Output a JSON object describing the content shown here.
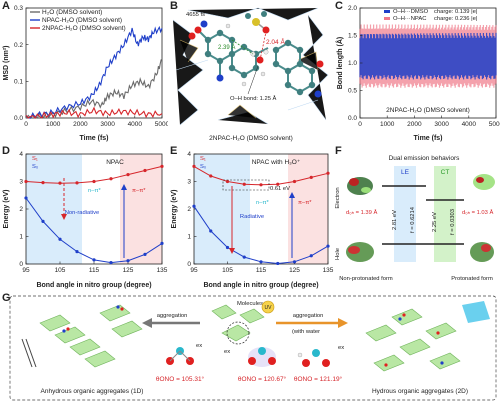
{
  "panel_labels": {
    "a": "A",
    "b": "B",
    "c": "C",
    "d": "D",
    "e": "E",
    "f": "F",
    "g": "G"
  },
  "colors": {
    "gray": "#6b6b6b",
    "blue": "#1f3fc9",
    "red": "#d6262b",
    "pink": "#f07a8a",
    "shade_blue": "#d9ecfb",
    "shade_red": "#fbe1e1",
    "green": "#9fd98a",
    "cyan": "#29b8cc"
  },
  "chart_data": [
    {
      "id": "A",
      "type": "line",
      "xlabel": "Time (fs)",
      "ylabel": "MSD (nm²)",
      "xlim": [
        0,
        5000
      ],
      "ylim": [
        0,
        0.3
      ],
      "xticks": [
        "0",
        "1000",
        "2000",
        "3000",
        "4000",
        "5000"
      ],
      "yticks": [
        "0.0",
        "0.1",
        "0.2",
        "0.3"
      ],
      "series": [
        {
          "name": "H₂O (DMSO solvent)",
          "color": "#6b6b6b",
          "x": [
            0,
            500,
            1000,
            1500,
            2000,
            2400,
            2800,
            3000,
            3300,
            3600,
            3900,
            4200,
            4500,
            4800,
            5000
          ],
          "y": [
            0,
            0.005,
            0.01,
            0.02,
            0.03,
            0.045,
            0.035,
            0.06,
            0.07,
            0.06,
            0.09,
            0.1,
            0.085,
            0.12,
            0.16
          ]
        },
        {
          "name": "NPAC-H₂O (DMSO solvent)",
          "color": "#1f3fc9",
          "x": [
            0,
            500,
            1000,
            1500,
            2000,
            2400,
            2700,
            3000,
            3300,
            3600,
            3900,
            4100,
            4300,
            4500,
            4700,
            5000
          ],
          "y": [
            0,
            0.01,
            0.015,
            0.03,
            0.04,
            0.06,
            0.09,
            0.14,
            0.17,
            0.2,
            0.24,
            0.2,
            0.22,
            0.215,
            0.235,
            0.245
          ]
        },
        {
          "name": "2NPAC-H₂O (DMSO solvent)",
          "color": "#d6262b",
          "x": [
            0,
            500,
            1000,
            1500,
            2000,
            2500,
            3000,
            3500,
            4000,
            4500,
            5000
          ],
          "y": [
            0,
            0.005,
            0.01,
            0.015,
            0.01,
            0.02,
            0.012,
            0.018,
            0.015,
            0.01,
            0.012
          ]
        }
      ]
    },
    {
      "id": "C",
      "type": "line",
      "xlabel": "Time (fs)",
      "ylabel": "Bond length (Å)",
      "xlim": [
        0,
        5000
      ],
      "ylim": [
        0,
        2.0
      ],
      "xticks": [
        "0",
        "1000",
        "2000",
        "3000",
        "4000",
        "5000"
      ],
      "yticks": [
        "0.0",
        "0.5",
        "1.0",
        "1.5",
        "2.0"
      ],
      "annotation": "2NPAC-H₂O (DMSO solvent)",
      "series": [
        {
          "name": "O–H···DMSO",
          "color": "#1f3fc9",
          "charge": "charge: 0.139 |e|",
          "band": [
            0.7,
            1.55
          ]
        },
        {
          "name": "O–H···NPAC",
          "color": "#f07a8a",
          "charge": "charge: 0.236 |e|",
          "band": [
            0.55,
            1.7
          ]
        }
      ]
    },
    {
      "id": "D",
      "type": "line",
      "xlabel": "Bond angle in nitro group (degree)",
      "ylabel": "Energy (eV)",
      "xlim": [
        95,
        135
      ],
      "ylim": [
        0,
        4
      ],
      "xticks": [
        "95",
        "105",
        "115",
        "125",
        "135"
      ],
      "yticks": [
        "0",
        "1",
        "2",
        "3",
        "4"
      ],
      "title": "NPAC",
      "series": [
        {
          "name": "S₁",
          "color": "#d6262b",
          "x": [
            95,
            100,
            105,
            110,
            115,
            120,
            125,
            130,
            135
          ],
          "y": [
            3.0,
            2.96,
            2.94,
            2.95,
            3.0,
            3.1,
            3.25,
            3.4,
            3.55
          ]
        },
        {
          "name": "S₀",
          "color": "#1f3fc9",
          "x": [
            95,
            100,
            105,
            110,
            115,
            120,
            125,
            130,
            135
          ],
          "y": [
            2.4,
            1.55,
            0.9,
            0.45,
            0.15,
            0.05,
            0.12,
            0.35,
            0.75
          ]
        }
      ],
      "labels": {
        "left": "n–π*",
        "right": "π–π*",
        "arrow": "Non-radiative"
      }
    },
    {
      "id": "E",
      "type": "line",
      "xlabel": "Bond angle in nitro group (degree)",
      "ylabel": "Energy (eV)",
      "xlim": [
        95,
        135
      ],
      "ylim": [
        0,
        4
      ],
      "xticks": [
        "95",
        "105",
        "115",
        "125",
        "135"
      ],
      "yticks": [
        "0",
        "1",
        "2",
        "3",
        "4"
      ],
      "title": "NPAC with H₃O⁺",
      "series": [
        {
          "name": "S₁",
          "color": "#d6262b",
          "x": [
            95,
            100,
            105,
            110,
            115,
            120,
            125,
            130,
            135
          ],
          "y": [
            3.55,
            3.2,
            3.0,
            2.9,
            2.88,
            2.9,
            3.0,
            3.15,
            3.3
          ]
        },
        {
          "name": "S₀",
          "color": "#1f3fc9",
          "x": [
            95,
            100,
            105,
            110,
            115,
            120,
            125,
            130,
            135
          ],
          "y": [
            2.1,
            1.2,
            0.6,
            0.25,
            0.08,
            0.02,
            0.08,
            0.3,
            0.65
          ]
        }
      ],
      "labels": {
        "left": "n–π*",
        "right": "π–π*",
        "arrow": "Radiative",
        "gap": "0.61 eV"
      }
    }
  ],
  "panel_b": {
    "time": "4655 fs",
    "dist1": "2.39 Å",
    "dist2": "2.04 Å",
    "bond": "O–H bond: 1.25 Å",
    "caption": "2NPAC-H₂O (DMSO solvent)"
  },
  "panel_f": {
    "title": "Dual emission behaviors",
    "le": "LE",
    "ct": "CT",
    "electron": "Electron",
    "hole": "Hole",
    "e1": "2.81 eV",
    "f1": "f = 0.6214",
    "e2": "2.25 eV",
    "f2": "f = 0.0303",
    "d1": "d₀ₕ = 1.39 Å",
    "d2": "d₀ₕ = 1.03 Å",
    "left_form": "Non-protonated form",
    "right_form": "Protonated form"
  },
  "panel_g": {
    "molecules": "Molecules",
    "agg_left": "aggregation",
    "uv": "UV",
    "agg_right": "aggregation",
    "agg_right_sub": "(with water",
    "ex": "ex",
    "theta1": "θONO = 105.31°",
    "theta2": "θONO = 120.67°",
    "theta3": "θONO = 121.19°",
    "left_caption": "Anhydrous organic aggregates (1D)",
    "right_caption": "Hydrous organic aggregates (2D)"
  }
}
